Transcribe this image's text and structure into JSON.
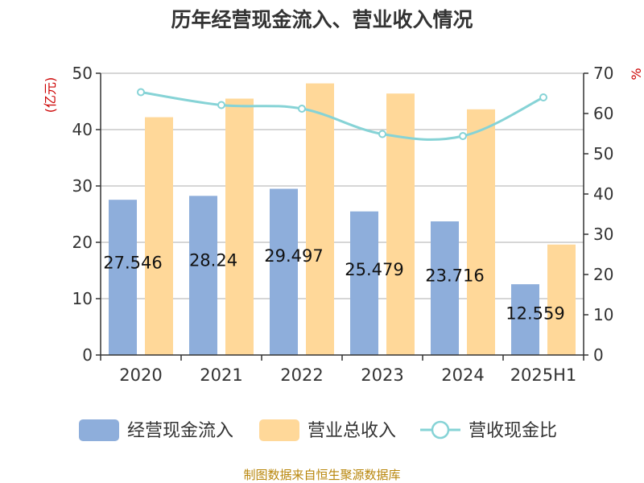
{
  "chart_data": {
    "type": "bar",
    "title": "历年经营现金流入、营业收入情况",
    "categories": [
      "2020",
      "2021",
      "2022",
      "2023",
      "2024",
      "2025H1"
    ],
    "series": [
      {
        "name": "经营现金流入",
        "type": "bar",
        "axis": "left",
        "color": "#8eaedb",
        "values": [
          27.546,
          28.24,
          29.497,
          25.479,
          23.716,
          12.559
        ],
        "data_labels": [
          "27.546",
          "28.24",
          "29.497",
          "25.479",
          "23.716",
          "12.559"
        ]
      },
      {
        "name": "营业总收入",
        "type": "bar",
        "axis": "left",
        "color": "#ffd899",
        "values": [
          42.2,
          45.5,
          48.2,
          46.4,
          43.6,
          19.6
        ]
      },
      {
        "name": "营收现金比",
        "type": "line",
        "axis": "right",
        "color": "#86d3d6",
        "values": [
          65.3,
          62.1,
          61.2,
          54.9,
          54.4,
          64.0
        ]
      }
    ],
    "y_left": {
      "label": "(亿元)",
      "min": 0,
      "max": 50,
      "ticks": [
        0,
        10,
        20,
        30,
        40,
        50
      ]
    },
    "y_right": {
      "label": "%",
      "min": 0,
      "max": 70,
      "ticks": [
        0,
        10,
        20,
        30,
        40,
        50,
        60,
        70
      ]
    },
    "grid": true,
    "legend": "bottom"
  },
  "source": "制图数据来自恒生聚源数据库"
}
